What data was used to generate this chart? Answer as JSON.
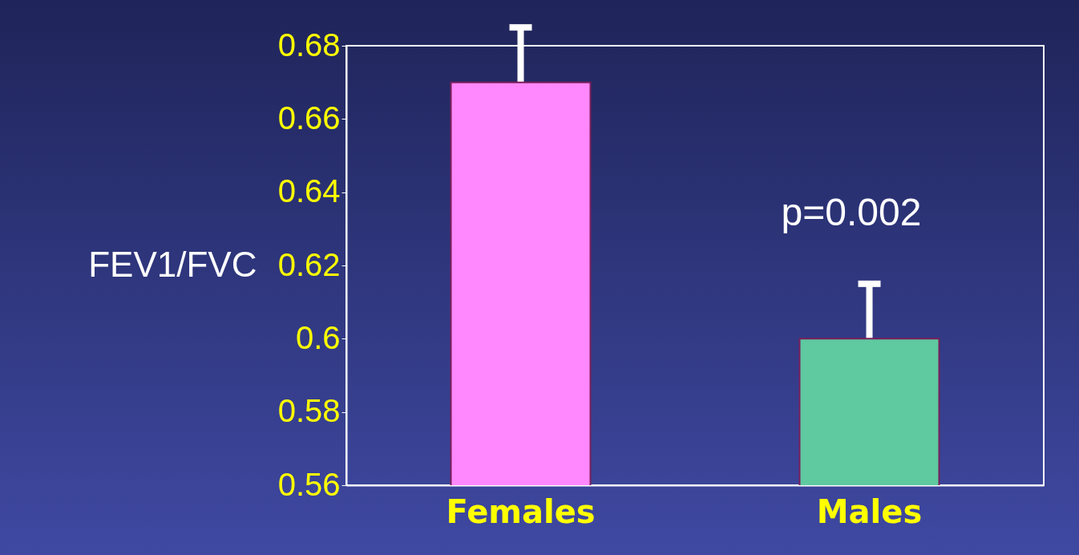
{
  "chart_data": {
    "type": "bar",
    "ylabel": "FEV1/FVC",
    "categories": [
      "Females",
      "Males"
    ],
    "values": [
      0.67,
      0.6
    ],
    "colors": [
      "#ff88ff",
      "#5fc9a0"
    ],
    "errors": [
      0.015,
      0.015
    ],
    "ylim": [
      0.56,
      0.68
    ],
    "yticks": [
      0.56,
      0.58,
      0.6,
      0.62,
      0.64,
      0.66,
      0.68
    ],
    "annotations": [
      "p=0.002"
    ],
    "grid": false,
    "legend": false
  }
}
